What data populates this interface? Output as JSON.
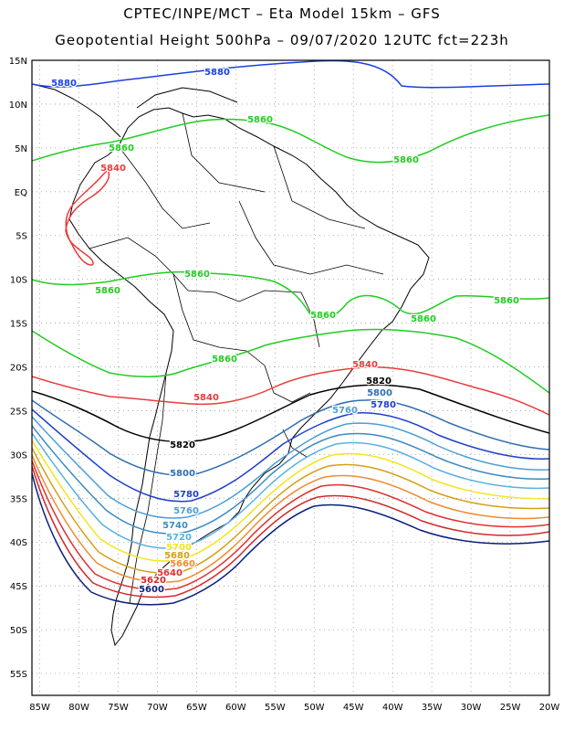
{
  "header": {
    "title_line1": "CPTEC/INPE/MCT –  Eta Model 15km – GFS",
    "title_line2": "Geopotential Height 500hPa – 09/07/2020 12UTC fct=223h"
  },
  "map": {
    "lat_labels": [
      "15N",
      "10N",
      "5N",
      "EQ",
      "5S",
      "10S",
      "15S",
      "20S",
      "25S",
      "30S",
      "35S",
      "40S",
      "45S",
      "50S",
      "55S"
    ],
    "lon_labels": [
      "85W",
      "80W",
      "75W",
      "70W",
      "65W",
      "60W",
      "55W",
      "50W",
      "45W",
      "40W",
      "35W",
      "30W",
      "25W",
      "20W"
    ],
    "lat_range": [
      15,
      -57.5
    ],
    "lon_range": [
      -86,
      -20
    ],
    "grid": true
  },
  "contours": {
    "levels": [
      "5880",
      "5860",
      "5840",
      "5820",
      "5800",
      "5780",
      "5760",
      "5740",
      "5720",
      "5700",
      "5680",
      "5660",
      "5640",
      "5620",
      "5600"
    ],
    "colors": {
      "5880": "#1a3fe0",
      "5860": "#22cc22",
      "5840": "#e83c3c",
      "5820": "#000000",
      "5800": "#2f6fb0",
      "5780": "#1f3fc8",
      "5760": "#4a9fd8",
      "5740": "#3a8cc0",
      "5720": "#5ab0e0",
      "5700": "#f2e61a",
      "5680": "#d4a017",
      "5660": "#f08c30",
      "5640": "#e03030",
      "5620": "#d02a2a",
      "5600": "#0a1f7a"
    },
    "labels": {
      "5880_a": "5880",
      "5880_b": "5880",
      "5860_a": "5860",
      "5860_b": "5860",
      "5860_c": "5860",
      "5860_d": "5860",
      "5860_e": "5860",
      "5860_f": "5860",
      "5860_g": "5860",
      "5860_h": "5860",
      "5860_i": "5860",
      "5840_a": "5840",
      "5840_b": "5840",
      "5840_c": "5840",
      "5820_a": "5820",
      "5820_b": "5820",
      "5800_a": "5800",
      "5800_b": "5800",
      "5780_a": "5780",
      "5780_b": "5780",
      "5760_a": "5760",
      "5760_b": "5760",
      "5740_a": "5740",
      "5720_a": "5720",
      "5700_a": "5700",
      "5680_a": "5680",
      "5660_a": "5660",
      "5640_a": "5640",
      "5620_a": "5620",
      "5600_a": "5600"
    }
  }
}
